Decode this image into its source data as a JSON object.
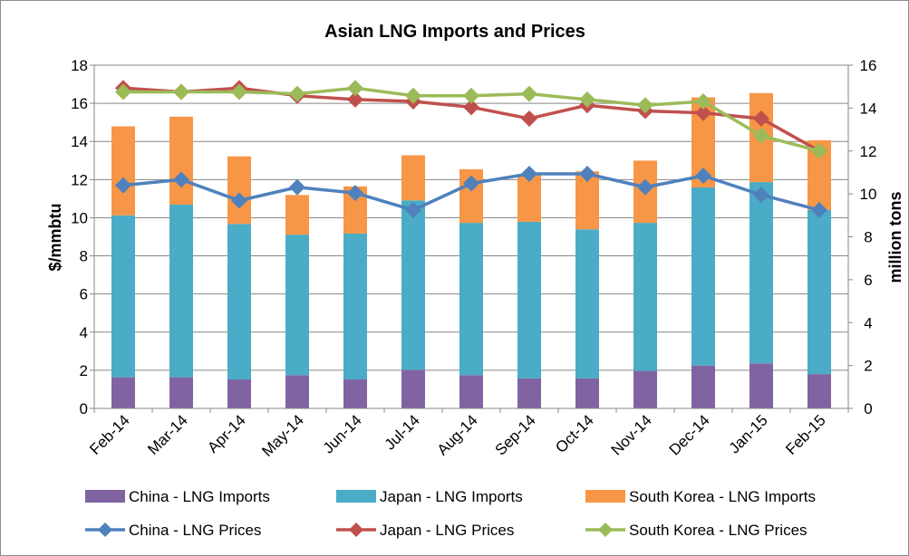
{
  "chart_data": {
    "type": "bar",
    "title": "Asian LNG Imports and Prices",
    "ylabel": "$/mmbtu",
    "y2label": "million tons",
    "ylim": [
      0,
      18
    ],
    "yticks": [
      0,
      2,
      4,
      6,
      8,
      10,
      12,
      14,
      16,
      18
    ],
    "y2lim": [
      0,
      16
    ],
    "y2ticks": [
      0,
      2,
      4,
      6,
      8,
      10,
      12,
      14,
      16
    ],
    "categories": [
      "Feb-14",
      "Mar-14",
      "Apr-14",
      "May-14",
      "Jun-14",
      "Jul-14",
      "Aug-14",
      "Sep-14",
      "Oct-14",
      "Nov-14",
      "Dec-14",
      "Jan-15",
      "Feb-15"
    ],
    "bar_series": [
      {
        "name": "China - LNG Imports",
        "color": "#8064a2",
        "axis": "right",
        "values": [
          1.45,
          1.45,
          1.35,
          1.55,
          1.35,
          1.8,
          1.55,
          1.4,
          1.4,
          1.75,
          2.0,
          2.1,
          1.6
        ]
      },
      {
        "name": "Japan - LNG Imports",
        "color": "#4aacc6",
        "axis": "right",
        "values": [
          7.55,
          8.05,
          7.25,
          6.55,
          6.8,
          7.9,
          7.1,
          7.3,
          6.95,
          6.9,
          8.3,
          8.45,
          7.65
        ]
      },
      {
        "name": "South Korea - LNG Imports",
        "color": "#f79646",
        "axis": "right",
        "values": [
          4.15,
          4.1,
          3.15,
          1.85,
          2.2,
          2.1,
          2.5,
          2.2,
          2.7,
          2.9,
          4.2,
          4.15,
          3.25
        ]
      }
    ],
    "line_series": [
      {
        "name": "China - LNG Prices",
        "color": "#4f81bd",
        "axis": "left",
        "values": [
          11.7,
          12.0,
          10.9,
          11.6,
          11.3,
          10.4,
          11.8,
          12.3,
          12.3,
          11.6,
          12.2,
          11.2,
          10.4
        ]
      },
      {
        "name": "Japan - LNG Prices",
        "color": "#c0504d",
        "axis": "left",
        "values": [
          16.8,
          16.6,
          16.8,
          16.4,
          16.2,
          16.1,
          15.8,
          15.2,
          15.9,
          15.6,
          15.5,
          15.2,
          13.5
        ]
      },
      {
        "name": "South Korea - LNG Prices",
        "color": "#9bbb59",
        "axis": "left",
        "values": [
          16.6,
          16.6,
          16.6,
          16.5,
          16.8,
          16.4,
          16.4,
          16.5,
          16.2,
          15.9,
          16.1,
          14.3,
          13.5
        ]
      }
    ]
  }
}
